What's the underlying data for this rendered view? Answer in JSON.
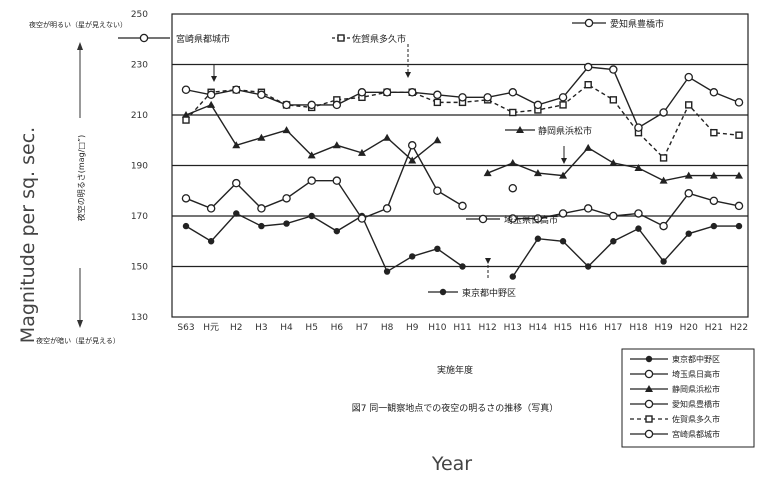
{
  "chart_data": {
    "type": "line",
    "title": "",
    "xlabel": "Year",
    "ylabel": "Magnitude per sq. sec.",
    "ylim": [
      130,
      250
    ],
    "yticks": [
      130,
      150,
      170,
      190,
      210,
      230,
      250
    ],
    "grid": true,
    "legend_position": "bottom-right",
    "categories": [
      "S63",
      "H元",
      "H2",
      "H3",
      "H4",
      "H5",
      "H6",
      "H7",
      "H8",
      "H9",
      "H10",
      "H11",
      "H12",
      "H13",
      "H14",
      "H15",
      "H16",
      "H17",
      "H18",
      "H19",
      "H20",
      "H21",
      "H22"
    ],
    "series": [
      {
        "marker": "filled-circle",
        "dash": "solid",
        "values": [
          166,
          160,
          171,
          166,
          167,
          170,
          164,
          170,
          148,
          154,
          157,
          150,
          null,
          146,
          161,
          160,
          150,
          160,
          165,
          152,
          163,
          166,
          166
        ]
      },
      {
        "marker": "open-circle",
        "dash": "solid",
        "values": [
          null,
          null,
          null,
          null,
          null,
          null,
          null,
          null,
          null,
          null,
          null,
          null,
          null,
          169,
          169,
          171,
          173,
          170,
          171,
          166,
          179,
          176,
          174
        ]
      },
      {
        "marker": "filled-triangle",
        "dash": "solid",
        "values": [
          210,
          214,
          198,
          201,
          204,
          194,
          198,
          195,
          201,
          192,
          200,
          null,
          187,
          191,
          187,
          186,
          197,
          191,
          189,
          184,
          186,
          186,
          186
        ]
      },
      {
        "marker": "open-circle",
        "dash": "solid",
        "values": [
          177,
          173,
          183,
          173,
          177,
          184,
          184,
          169,
          173,
          198,
          180,
          174,
          null,
          181,
          null,
          null,
          null,
          null,
          null,
          null,
          null,
          null,
          null
        ]
      },
      {
        "marker": "filled-square",
        "dash": "dashed",
        "values": [
          208,
          219,
          220,
          219,
          214,
          213,
          216,
          217,
          219,
          219,
          215,
          215,
          216,
          211,
          212,
          214,
          222,
          216,
          203,
          193,
          214,
          203,
          202
        ]
      },
      {
        "marker": "open-circle",
        "dash": "solid",
        "values": [
          220,
          218,
          220,
          218,
          214,
          214,
          214,
          219,
          219,
          219,
          218,
          217,
          217,
          219,
          214,
          217,
          229,
          228,
          205,
          211,
          225,
          219,
          215
        ]
      }
    ],
    "annotations": [
      {
        "text": "宮崎県都城市",
        "target": "legend"
      },
      {
        "text": "佐賀県多久市",
        "target": "legend"
      },
      {
        "text": "愛知県豊橋市",
        "target": "legend"
      },
      {
        "text": "静岡県浜松市",
        "target": "legend"
      },
      {
        "text": "埼玉県日高市",
        "target": "legend"
      },
      {
        "text": "東京都中野区",
        "target": "legend"
      }
    ],
    "side_labels": {
      "top": "夜空が明るい（星が見えない）",
      "middle": "夜空の明るさ(mag/□”)",
      "bottom": "夜空が暗い（星が見える）"
    },
    "axis_title_jp": "実施年度",
    "figure_caption_jp": "図7 同一観察地点での夜空の明るさの推移（写真）"
  }
}
